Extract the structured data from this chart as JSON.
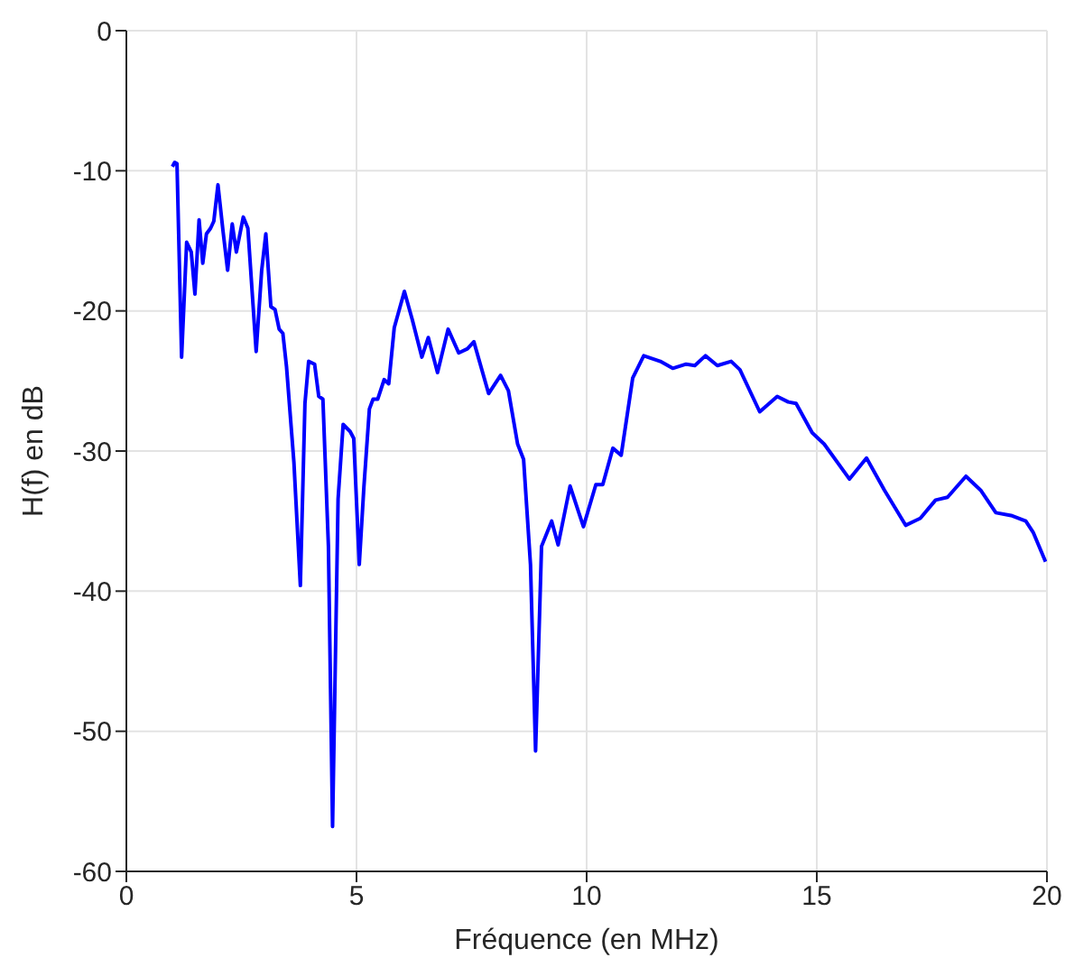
{
  "chart_data": {
    "type": "line",
    "xlabel": "Fréquence (en MHz)",
    "ylabel": "H(f) en dB",
    "xlim": [
      0,
      20
    ],
    "xticks": [
      0,
      5,
      10,
      15,
      20
    ],
    "ylim": [
      -60,
      0
    ],
    "yticks": [
      -60,
      -50,
      -40,
      -30,
      -20,
      -10,
      0
    ],
    "grid": true,
    "line_style": "solid",
    "marker": "none",
    "series": [
      {
        "color": "#0000ff",
        "x": [
          1.0,
          1.05,
          1.1,
          1.2,
          1.31,
          1.41,
          1.49,
          1.58,
          1.66,
          1.74,
          1.83,
          1.9,
          1.99,
          2.1,
          2.2,
          2.3,
          2.39,
          2.54,
          2.64,
          2.82,
          2.94,
          3.03,
          3.14,
          3.23,
          3.32,
          3.4,
          3.48,
          3.64,
          3.78,
          3.88,
          3.96,
          4.09,
          4.18,
          4.27,
          4.39,
          4.48,
          4.6,
          4.71,
          4.86,
          4.94,
          5.06,
          5.16,
          5.28,
          5.36,
          5.46,
          5.6,
          5.7,
          5.82,
          6.04,
          6.21,
          6.42,
          6.56,
          6.76,
          6.99,
          7.22,
          7.41,
          7.55,
          7.87,
          8.13,
          8.3,
          8.5,
          8.63,
          8.78,
          8.89,
          9.02,
          9.24,
          9.38,
          9.64,
          9.93,
          10.2,
          10.35,
          10.57,
          10.75,
          11.0,
          11.24,
          11.6,
          11.87,
          12.16,
          12.35,
          12.58,
          12.84,
          13.14,
          13.33,
          13.76,
          14.14,
          14.38,
          14.55,
          14.9,
          15.16,
          15.71,
          16.08,
          16.47,
          16.93,
          17.25,
          17.58,
          17.84,
          18.24,
          18.56,
          18.89,
          19.22,
          19.54,
          19.7,
          19.97
        ],
        "values": [
          -9.7,
          -9.4,
          -9.5,
          -23.3,
          -15.1,
          -15.8,
          -18.8,
          -13.5,
          -16.6,
          -14.5,
          -14.1,
          -13.6,
          -11.0,
          -14.3,
          -17.1,
          -13.8,
          -15.8,
          -13.3,
          -14.1,
          -22.9,
          -17.1,
          -14.5,
          -19.7,
          -19.9,
          -21.3,
          -21.6,
          -24.0,
          -30.8,
          -39.6,
          -26.6,
          -23.6,
          -23.8,
          -26.1,
          -26.3,
          -36.8,
          -56.8,
          -33.4,
          -28.1,
          -28.6,
          -29.1,
          -38.1,
          -32.6,
          -27.0,
          -26.3,
          -26.3,
          -24.9,
          -25.2,
          -21.2,
          -18.6,
          -20.6,
          -23.3,
          -21.9,
          -24.4,
          -21.3,
          -23.0,
          -22.7,
          -22.2,
          -25.9,
          -24.6,
          -25.7,
          -29.5,
          -30.6,
          -38.1,
          -51.4,
          -36.8,
          -35.0,
          -36.7,
          -32.5,
          -35.4,
          -32.4,
          -32.4,
          -29.8,
          -30.3,
          -24.8,
          -23.2,
          -23.6,
          -24.1,
          -23.8,
          -23.9,
          -23.2,
          -23.9,
          -23.6,
          -24.2,
          -27.2,
          -26.1,
          -26.5,
          -26.6,
          -28.7,
          -29.5,
          -32.0,
          -30.5,
          -32.8,
          -35.3,
          -34.8,
          -33.5,
          -33.3,
          -31.8,
          -32.8,
          -34.4,
          -34.6,
          -35.0,
          -35.8,
          -37.9
        ]
      }
    ]
  }
}
